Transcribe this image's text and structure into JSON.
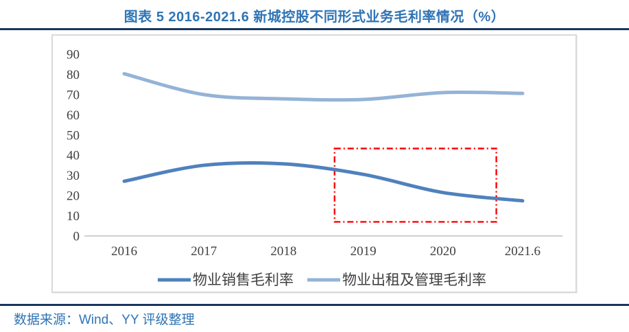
{
  "header": {
    "title": "图表 5 2016-2021.6 新城控股不同形式业务毛利率情况（%）"
  },
  "footer": {
    "source_text": "数据来源：Wind、YY 评级整理"
  },
  "colors": {
    "title_blue": "#2E74B5",
    "rule_navy": "#17375E",
    "axis_text": "#404040",
    "axis_line": "#BFBFBF",
    "frame_border": "#D9D9D9",
    "annotation_red": "#FF0000"
  },
  "chart_data": {
    "type": "line",
    "title": "图表 5 2016-2021.6 新城控股不同形式业务毛利率情况（%）",
    "categories": [
      "2016",
      "2017",
      "2018",
      "2019",
      "2020",
      "2021.6"
    ],
    "series": [
      {
        "name": "物业销售毛利率",
        "color": "#4F81BD",
        "values": [
          27.1,
          35.0,
          35.7,
          30.5,
          21.5,
          17.4
        ]
      },
      {
        "name": "物业出租及管理毛利率",
        "color": "#95B3D7",
        "values": [
          80.3,
          70.0,
          67.9,
          67.6,
          71.0,
          70.6
        ]
      }
    ],
    "xlabel": "",
    "ylabel": "",
    "ylim": [
      0,
      90
    ],
    "ytick_step": 10,
    "grid": false,
    "smooth": true,
    "legend_position": "bottom-inside",
    "annotation_box": {
      "shape": "rect",
      "stroke": "#FF0000",
      "style": "dash-dot",
      "x_from_category_index": 2.64,
      "x_to_category_index": 4.67,
      "y_from": 7,
      "y_to": 43.3
    }
  }
}
